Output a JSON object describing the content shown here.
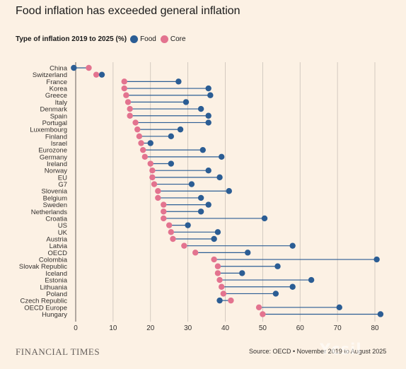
{
  "title": "Food inflation has exceeded general inflation",
  "legend": {
    "title": "Type of inflation 2019 to 2025 (%)",
    "items": [
      {
        "label": "Food",
        "color": "#2b5d94"
      },
      {
        "label": "Core",
        "color": "#e3738f"
      }
    ]
  },
  "footer": {
    "brand": "FINANCIAL TIMES",
    "source": "Source: OECD • November 2019 to August 2025",
    "watermark": "Ycsil"
  },
  "chart_data": {
    "type": "dumbbell",
    "xlim": [
      -5,
      82
    ],
    "xticks": [
      0,
      10,
      20,
      30,
      40,
      50,
      60,
      70,
      80
    ],
    "grid": true,
    "legend_position": "top-left",
    "series": [
      {
        "name": "Food",
        "color": "#2b5d94"
      },
      {
        "name": "Core",
        "color": "#e3738f"
      }
    ],
    "categories": [
      "China",
      "Switzerland",
      "France",
      "Korea",
      "Greece",
      "Italy",
      "Denmark",
      "Spain",
      "Portugal",
      "Luxembourg",
      "Finland",
      "Israel",
      "Eurozone",
      "Germany",
      "Ireland",
      "Norway",
      "EU",
      "G7",
      "Slovenia",
      "Belgium",
      "Sweden",
      "Netherlands",
      "Croatia",
      "US",
      "UK",
      "Austria",
      "Latvia",
      "OECD",
      "Colombia",
      "Slovak Republic",
      "Iceland",
      "Estonia",
      "Lithuania",
      "Poland",
      "Czech Republic",
      "OECD Europe",
      "Hungary"
    ],
    "food": [
      -0.5,
      7,
      27.5,
      35.5,
      36,
      29.5,
      33.5,
      35.5,
      35.5,
      28,
      25.5,
      20,
      34,
      39,
      25.5,
      35.5,
      38.5,
      31,
      41,
      33.5,
      35.5,
      33.5,
      50.5,
      30,
      38,
      37,
      58,
      46,
      80.5,
      54,
      44.5,
      63,
      58,
      53.5,
      38.5,
      70.5,
      81.5
    ],
    "core": [
      3.5,
      5.5,
      13,
      13,
      13.5,
      14,
      14.5,
      14.5,
      16,
      16.5,
      17,
      17.5,
      18,
      18.5,
      20,
      20.5,
      20.5,
      21,
      22,
      22,
      23.5,
      23.5,
      23.5,
      25,
      25.5,
      26,
      29,
      32,
      37,
      38,
      38,
      38.5,
      39,
      39.5,
      41.5,
      49,
      50
    ]
  }
}
